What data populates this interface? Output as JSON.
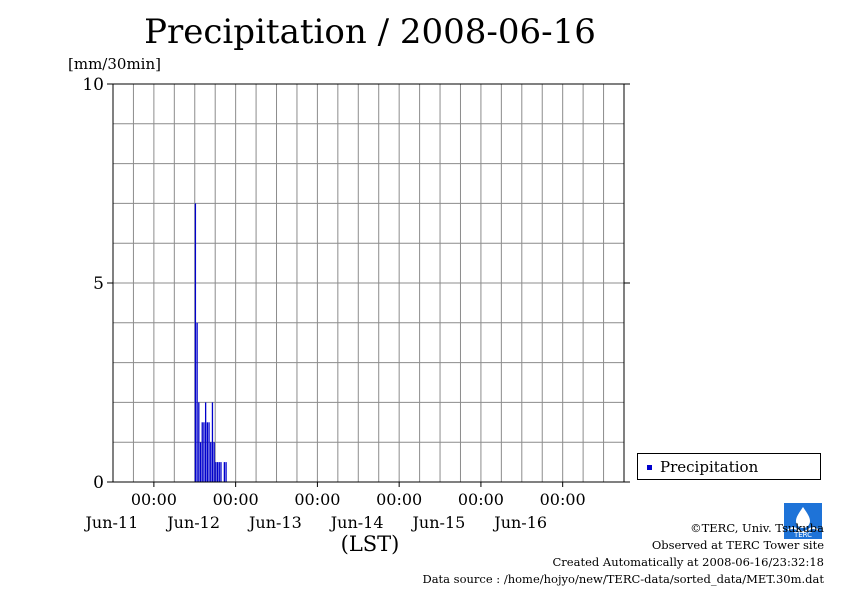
{
  "chart_data": {
    "type": "bar",
    "title": "Precipitation / 2008-06-16",
    "ylabel": "[mm/30min]",
    "xlabel": "(LST)",
    "ylim": [
      0,
      10
    ],
    "yticks": [
      "0",
      "5",
      "10"
    ],
    "xlim": [
      "2008-06-10T12:00",
      "2008-06-16T18:00"
    ],
    "xticks": [
      {
        "time": "00:00",
        "date": "Jun-11",
        "at": "2008-06-11T00:00"
      },
      {
        "time": "00:00",
        "date": "Jun-12",
        "at": "2008-06-12T00:00"
      },
      {
        "time": "00:00",
        "date": "Jun-13",
        "at": "2008-06-13T00:00"
      },
      {
        "time": "00:00",
        "date": "Jun-14",
        "at": "2008-06-14T00:00"
      },
      {
        "time": "00:00",
        "date": "Jun-15",
        "at": "2008-06-15T00:00"
      },
      {
        "time": "00:00",
        "date": "Jun-16",
        "at": "2008-06-16T00:00"
      }
    ],
    "grid": true,
    "legend_position": "bottom-right",
    "series": [
      {
        "name": "Precipitation",
        "color": "#0000cc",
        "x": [
          "2008-06-11T12:00",
          "2008-06-11T12:30",
          "2008-06-11T13:00",
          "2008-06-11T13:30",
          "2008-06-11T14:00",
          "2008-06-11T14:30",
          "2008-06-11T15:00",
          "2008-06-11T15:30",
          "2008-06-11T16:00",
          "2008-06-11T16:30",
          "2008-06-11T17:00",
          "2008-06-11T17:30",
          "2008-06-11T18:00",
          "2008-06-11T18:30",
          "2008-06-11T19:00",
          "2008-06-11T19:30",
          "2008-06-11T20:00",
          "2008-06-11T20:30",
          "2008-06-11T21:00"
        ],
        "values": [
          7,
          4,
          2,
          1,
          1.5,
          1.5,
          2,
          1.5,
          1.5,
          1,
          2,
          1,
          0.5,
          0.5,
          0.5,
          0.5,
          0,
          0.5,
          0.5
        ]
      }
    ]
  },
  "credits": {
    "copyright": "©TERC, Univ. Tsukuba",
    "site": "Observed at TERC Tower site",
    "created": "Created Automatically at 2008-06-16/23:32:18",
    "source": "Data source : /home/hojyo/new/TERC-data/sorted_data/MET.30m.dat"
  },
  "logo": {
    "text": "TERC",
    "color": "#1e73d8"
  }
}
